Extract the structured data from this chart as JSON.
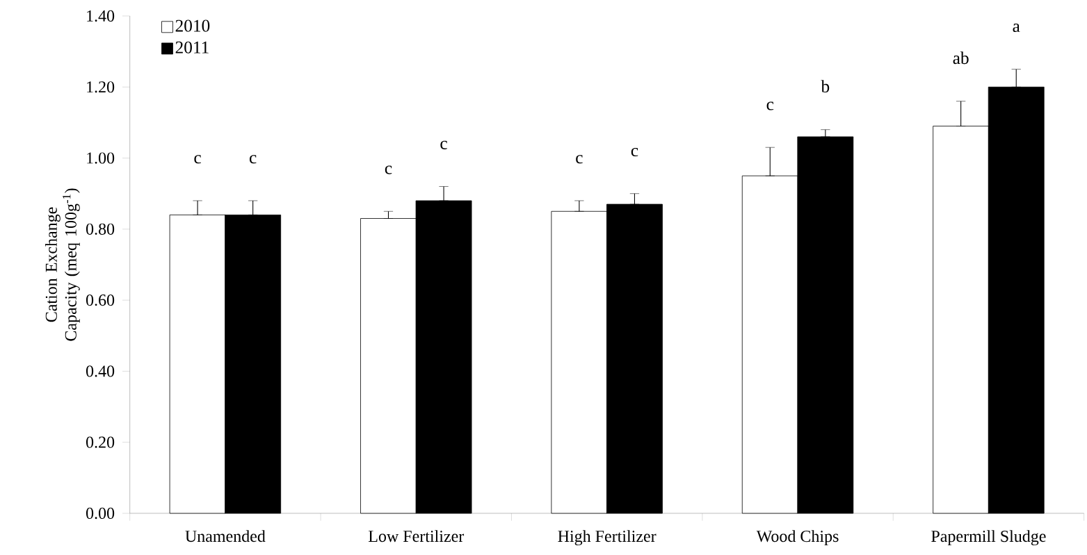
{
  "chart_data": {
    "type": "bar",
    "ylabel": "Cation Exchange Capacity (meq 100g$^{-1}$)",
    "categories": [
      "Unamended",
      "Low Fertilizer",
      "High Fertilizer",
      "Wood Chips",
      "Papermill Sludge"
    ],
    "series": [
      {
        "name": "2010",
        "color": "#ffffff",
        "values": [
          0.84,
          0.83,
          0.85,
          0.95,
          1.09
        ],
        "errors": [
          [
            0.84,
            0.88
          ],
          [
            0.83,
            0.85
          ],
          [
            0.85,
            0.88
          ],
          [
            0.95,
            1.03
          ],
          [
            1.09,
            1.16
          ]
        ]
      },
      {
        "name": "2011",
        "color": "#000000",
        "values": [
          0.84,
          0.88,
          0.87,
          1.06,
          1.2
        ],
        "errors": [
          [
            0.84,
            0.88
          ],
          [
            0.88,
            0.92
          ],
          [
            0.87,
            0.9
          ],
          [
            1.06,
            1.08
          ],
          [
            1.2,
            1.25
          ]
        ]
      }
    ],
    "ylim": [
      0,
      1.4
    ],
    "yticks": [
      {
        "value": 0,
        "label": "0.00"
      },
      {
        "value": 0.2,
        "label": "0.20"
      },
      {
        "value": 0.4,
        "label": "0.40"
      },
      {
        "value": 0.6,
        "label": "0.60"
      },
      {
        "value": 0.8,
        "label": "0.80"
      },
      {
        "value": 1.0,
        "label": "1.00"
      },
      {
        "value": 1.2,
        "label": "1.20"
      },
      {
        "value": 1.4,
        "label": "1.40"
      }
    ],
    "annotations": [
      "c",
      "c",
      "c",
      "c",
      "c",
      "c",
      "c",
      "b",
      "ab",
      "a"
    ],
    "legend": "top left",
    "grid": false
  }
}
